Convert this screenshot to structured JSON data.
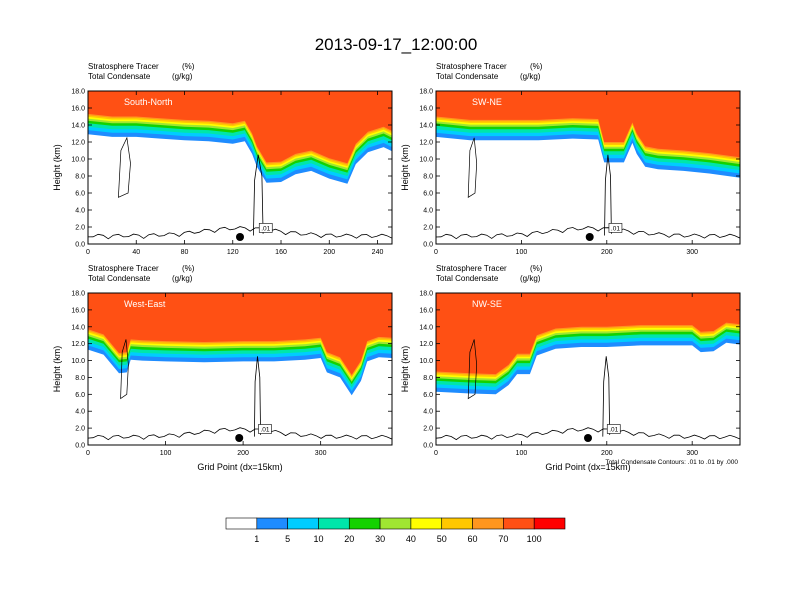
{
  "title": "2013-09-17_12:00:00",
  "colors": {
    "contour": "#000000",
    "bands": [
      "#ffffff",
      "#1e8cff",
      "#00cdff",
      "#00e6aa",
      "#14d200",
      "#a0e632",
      "#ffff00",
      "#ffc800",
      "#ff961e",
      "#ff5014",
      "#ff0000"
    ]
  },
  "colorbar": {
    "labels": [
      "1",
      "5",
      "10",
      "20",
      "30",
      "40",
      "50",
      "60",
      "70",
      "100"
    ]
  },
  "footnote": "Total Condensate Contours: .01 to .01 by .000",
  "chart_data": [
    {
      "type": "contour",
      "label": "South-North",
      "subtitle_left_1": "Stratosphere Tracer",
      "subtitle_unit_1": "(%)",
      "subtitle_left_2": "Total Condensate",
      "subtitle_unit_2": "(g/kg)",
      "ylabel": "Height (km)",
      "xlabel": "",
      "xlim": [
        0,
        252
      ],
      "ylim": [
        0,
        18
      ],
      "xticks": [
        "0",
        "40",
        "80",
        "120",
        "160",
        "200",
        "240"
      ],
      "yticks": [
        "0.0",
        "2.0",
        "4.0",
        "6.0",
        "8.0",
        "10.0",
        "12.0",
        "14.0",
        "16.0",
        "18.0"
      ],
      "contour_label": ".01",
      "marker_x": 126,
      "tropopause": [
        [
          0,
          15.3
        ],
        [
          20,
          15
        ],
        [
          40,
          15
        ],
        [
          60,
          14.8
        ],
        [
          80,
          14.6
        ],
        [
          100,
          14.5
        ],
        [
          120,
          14.2
        ],
        [
          130,
          14.5
        ],
        [
          136,
          13
        ],
        [
          140,
          11.5
        ],
        [
          148,
          9.6
        ],
        [
          160,
          9.7
        ],
        [
          172,
          10.6
        ],
        [
          185,
          11
        ],
        [
          200,
          10.1
        ],
        [
          215,
          9.5
        ],
        [
          222,
          11.8
        ],
        [
          232,
          13.2
        ],
        [
          245,
          13.8
        ],
        [
          252,
          13.3
        ]
      ]
    },
    {
      "type": "contour",
      "label": "SW-NE",
      "subtitle_left_1": "Stratosphere Tracer",
      "subtitle_unit_1": "(%)",
      "subtitle_left_2": "Total Condensate",
      "subtitle_unit_2": "(g/kg)",
      "ylabel": "Height (km)",
      "xlabel": "",
      "xlim": [
        0,
        356
      ],
      "ylim": [
        0,
        18
      ],
      "xticks": [
        "0",
        "100",
        "200",
        "300"
      ],
      "yticks": [
        "0.0",
        "2.0",
        "4.0",
        "6.0",
        "8.0",
        "10.0",
        "12.0",
        "14.0",
        "16.0",
        "18.0"
      ],
      "contour_label": ".01",
      "marker_x": 180,
      "tropopause": [
        [
          0,
          15
        ],
        [
          40,
          14.6
        ],
        [
          80,
          14.6
        ],
        [
          120,
          14.6
        ],
        [
          160,
          14.8
        ],
        [
          190,
          14.7
        ],
        [
          197,
          12
        ],
        [
          220,
          12
        ],
        [
          230,
          14.3
        ],
        [
          235,
          13
        ],
        [
          245,
          11.5
        ],
        [
          260,
          11.2
        ],
        [
          290,
          11
        ],
        [
          320,
          10.7
        ],
        [
          356,
          10.2
        ]
      ]
    },
    {
      "type": "contour",
      "label": "West-East",
      "subtitle_left_1": "Stratosphere Tracer",
      "subtitle_unit_1": "(%)",
      "subtitle_left_2": "Total Condensate",
      "subtitle_unit_2": "(g/kg)",
      "ylabel": "Height (km)",
      "xlabel": "Grid Point (dx=15km)",
      "xlim": [
        0,
        392
      ],
      "ylim": [
        0,
        18
      ],
      "xticks": [
        "0",
        "100",
        "200",
        "300"
      ],
      "yticks": [
        "0.0",
        "2.0",
        "4.0",
        "6.0",
        "8.0",
        "10.0",
        "12.0",
        "14.0",
        "16.0",
        "18.0"
      ],
      "contour_label": ".01",
      "marker_x": 195,
      "tropopause": [
        [
          0,
          13.7
        ],
        [
          20,
          13.1
        ],
        [
          40,
          10.9
        ],
        [
          50,
          11
        ],
        [
          55,
          12.5
        ],
        [
          70,
          12.4
        ],
        [
          100,
          12.3
        ],
        [
          150,
          12.2
        ],
        [
          200,
          12.3
        ],
        [
          240,
          12.3
        ],
        [
          280,
          12.5
        ],
        [
          300,
          12.7
        ],
        [
          308,
          11
        ],
        [
          325,
          10.4
        ],
        [
          340,
          8.3
        ],
        [
          352,
          10
        ],
        [
          360,
          12.3
        ],
        [
          375,
          12.8
        ],
        [
          392,
          12.7
        ]
      ]
    },
    {
      "type": "contour",
      "label": "NW-SE",
      "subtitle_left_1": "Stratosphere Tracer",
      "subtitle_unit_1": "(%)",
      "subtitle_left_2": "Total Condensate",
      "subtitle_unit_2": "(g/kg)",
      "ylabel": "Height (km)",
      "xlabel": "Grid Point (dx=15km)",
      "xlim": [
        0,
        356
      ],
      "ylim": [
        0,
        18
      ],
      "xticks": [
        "0",
        "100",
        "200",
        "300"
      ],
      "yticks": [
        "0.0",
        "2.0",
        "4.0",
        "6.0",
        "8.0",
        "10.0",
        "12.0",
        "14.0",
        "16.0",
        "18.0"
      ],
      "contour_label": ".01",
      "marker_x": 178,
      "tropopause": [
        [
          0,
          8.7
        ],
        [
          40,
          8.5
        ],
        [
          70,
          8.4
        ],
        [
          85,
          9.5
        ],
        [
          95,
          10.8
        ],
        [
          110,
          10.8
        ],
        [
          118,
          13
        ],
        [
          140,
          13.8
        ],
        [
          170,
          14
        ],
        [
          200,
          14
        ],
        [
          240,
          14.2
        ],
        [
          280,
          14.2
        ],
        [
          300,
          14.2
        ],
        [
          310,
          13.4
        ],
        [
          325,
          13.5
        ],
        [
          340,
          14.5
        ],
        [
          356,
          14.3
        ]
      ]
    }
  ]
}
